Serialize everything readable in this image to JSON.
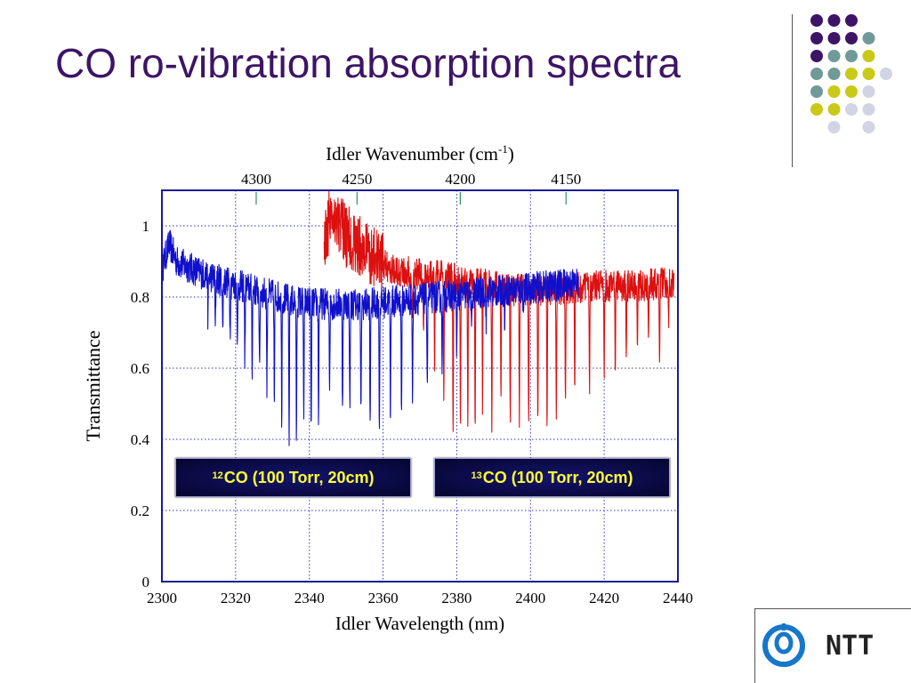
{
  "slide": {
    "title": "CO ro-vibration absorption spectra"
  },
  "legend": {
    "co12_sup": "12",
    "co12_text": "CO (100 Torr, 20cm)",
    "co13_sup": "13",
    "co13_text": "CO (100 Torr, 20cm)"
  },
  "logo": {
    "text": "NTT"
  },
  "colors": {
    "title": "#3d1466",
    "series_12co": "#1010cc",
    "series_13co": "#dd1010",
    "frame": "#1a1a99",
    "legend_text": "#ffff33",
    "dot_purple": "#3d1466",
    "dot_teal": "#6f9a98",
    "dot_yellow": "#c9c918",
    "dot_lavender": "#d3d3e6",
    "logo_blue": "#1777c9"
  },
  "chart_data": {
    "type": "line",
    "xlabel": "Idler Wavelength (nm)",
    "ylabel": "Transmittance",
    "top_axis_label_main": "Idler Wavenumber (cm",
    "top_axis_label_sup": "-1",
    "top_axis_label_end": ")",
    "xlim": [
      2300,
      2440
    ],
    "ylim": [
      0,
      1.1
    ],
    "x_ticks": [
      2300,
      2320,
      2340,
      2360,
      2380,
      2400,
      2420,
      2440
    ],
    "y_ticks": [
      0,
      0.2,
      0.4,
      0.6,
      0.8,
      1
    ],
    "y_tick_labels": [
      "0",
      "0.2",
      "0.4",
      "0.6",
      "0.8",
      "1"
    ],
    "top_ticks": [
      4300,
      4250,
      4200,
      4150
    ],
    "grid": true,
    "series": [
      {
        "name": "12CO (100 Torr, 20cm)",
        "x_range": [
          2300,
          2413
        ],
        "baseline_points": [
          [
            2300,
            0.88
          ],
          [
            2302,
            0.95
          ],
          [
            2304,
            0.9
          ],
          [
            2310,
            0.87
          ],
          [
            2318,
            0.84
          ],
          [
            2325,
            0.82
          ],
          [
            2335,
            0.79
          ],
          [
            2345,
            0.78
          ],
          [
            2355,
            0.78
          ],
          [
            2365,
            0.79
          ],
          [
            2375,
            0.8
          ],
          [
            2385,
            0.81
          ],
          [
            2395,
            0.82
          ],
          [
            2405,
            0.83
          ],
          [
            2413,
            0.84
          ]
        ],
        "absorption_lines": [
          {
            "x": 2312.5,
            "y": 0.74
          },
          {
            "x": 2314.5,
            "y": 0.7
          },
          {
            "x": 2316.5,
            "y": 0.69
          },
          {
            "x": 2318.5,
            "y": 0.7
          },
          {
            "x": 2320.5,
            "y": 0.67
          },
          {
            "x": 2322.5,
            "y": 0.62
          },
          {
            "x": 2324.5,
            "y": 0.6
          },
          {
            "x": 2326.5,
            "y": 0.57
          },
          {
            "x": 2328.5,
            "y": 0.54
          },
          {
            "x": 2330.5,
            "y": 0.48
          },
          {
            "x": 2332.5,
            "y": 0.47
          },
          {
            "x": 2334.5,
            "y": 0.41
          },
          {
            "x": 2336.5,
            "y": 0.4
          },
          {
            "x": 2338.5,
            "y": 0.43
          },
          {
            "x": 2340.5,
            "y": 0.4
          },
          {
            "x": 2342.5,
            "y": 0.46
          },
          {
            "x": 2345.5,
            "y": 0.55
          },
          {
            "x": 2349,
            "y": 0.49
          },
          {
            "x": 2351,
            "y": 0.47
          },
          {
            "x": 2354,
            "y": 0.44
          },
          {
            "x": 2356.5,
            "y": 0.42
          },
          {
            "x": 2359,
            "y": 0.43
          },
          {
            "x": 2362,
            "y": 0.44
          },
          {
            "x": 2365,
            "y": 0.47
          },
          {
            "x": 2368,
            "y": 0.5
          },
          {
            "x": 2372,
            "y": 0.56
          },
          {
            "x": 2376,
            "y": 0.6
          },
          {
            "x": 2380,
            "y": 0.64
          },
          {
            "x": 2384,
            "y": 0.68
          },
          {
            "x": 2388,
            "y": 0.71
          },
          {
            "x": 2393,
            "y": 0.74
          },
          {
            "x": 2398,
            "y": 0.76
          }
        ]
      },
      {
        "name": "13CO (100 Torr, 20cm)",
        "x_range": [
          2344,
          2439
        ],
        "baseline_points": [
          [
            2344,
            0.95
          ],
          [
            2346,
            1.05
          ],
          [
            2350,
            0.97
          ],
          [
            2355,
            0.93
          ],
          [
            2360,
            0.89
          ],
          [
            2366,
            0.87
          ],
          [
            2375,
            0.86
          ],
          [
            2385,
            0.84
          ],
          [
            2395,
            0.82
          ],
          [
            2405,
            0.82
          ],
          [
            2415,
            0.83
          ],
          [
            2425,
            0.83
          ],
          [
            2439,
            0.84
          ]
        ],
        "absorption_lines": [
          {
            "x": 2368,
            "y": 0.7
          },
          {
            "x": 2371,
            "y": 0.66
          },
          {
            "x": 2374,
            "y": 0.56
          },
          {
            "x": 2376.5,
            "y": 0.5
          },
          {
            "x": 2379,
            "y": 0.44
          },
          {
            "x": 2381,
            "y": 0.41
          },
          {
            "x": 2383,
            "y": 0.45
          },
          {
            "x": 2385,
            "y": 0.44
          },
          {
            "x": 2387,
            "y": 0.48
          },
          {
            "x": 2389.5,
            "y": 0.45
          },
          {
            "x": 2392,
            "y": 0.48
          },
          {
            "x": 2394.5,
            "y": 0.44
          },
          {
            "x": 2397,
            "y": 0.46
          },
          {
            "x": 2399.5,
            "y": 0.42
          },
          {
            "x": 2402,
            "y": 0.45
          },
          {
            "x": 2404.5,
            "y": 0.45
          },
          {
            "x": 2407,
            "y": 0.45
          },
          {
            "x": 2409.5,
            "y": 0.48
          },
          {
            "x": 2412,
            "y": 0.5
          },
          {
            "x": 2416,
            "y": 0.55
          },
          {
            "x": 2420,
            "y": 0.6
          },
          {
            "x": 2423,
            "y": 0.62
          },
          {
            "x": 2426,
            "y": 0.64
          },
          {
            "x": 2429,
            "y": 0.66
          },
          {
            "x": 2432,
            "y": 0.68
          },
          {
            "x": 2435,
            "y": 0.63
          },
          {
            "x": 2437.5,
            "y": 0.73
          }
        ]
      }
    ]
  }
}
